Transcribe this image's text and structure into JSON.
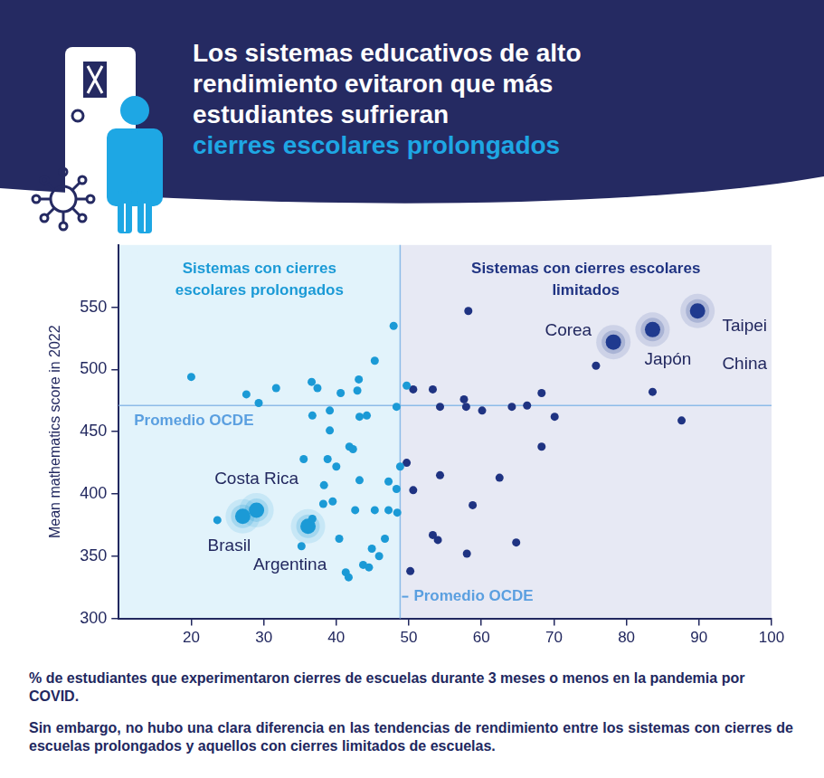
{
  "chart_data": {
    "type": "scatter",
    "title": "Los sistemas educativos de alto rendimiento evitaron que más estudiantes sufrieran",
    "subtitle": "cierres escolares prolongados",
    "x_label": "% de estudiantes que experimentaron cierres de escuelas durante 3 meses o menos en la pandemia por COVID.",
    "y_label": "Mean mathematics score in 2022",
    "note": "Sin embargo, no hubo una clara diferencia en las tendencias de rendimiento entre los sistemas con cierres de escuelas prolongados y aquellos con cierres limitados de escuelas.",
    "xlim": [
      10,
      100
    ],
    "xticks": [
      20,
      30,
      40,
      50,
      60,
      70,
      80,
      90,
      100
    ],
    "ylim": [
      300,
      600
    ],
    "yticks": [
      300,
      350,
      400,
      450,
      500,
      550
    ],
    "grid": false,
    "reference_lines": [
      {
        "axis": "x",
        "value": 48.8,
        "label": "Promedio OCDE"
      },
      {
        "axis": "y",
        "value": 471,
        "label": "Promedio OCDE"
      }
    ],
    "regions": [
      {
        "label": "Sistemas con cierres escolares prolongados",
        "side": "left",
        "color": "#e2f3fb"
      },
      {
        "label": "Sistemas con cierres escolares limitados",
        "side": "right",
        "color": "#e7e9f4"
      }
    ],
    "series": [
      {
        "color": "#1b9ad6",
        "marker": "circle",
        "x": [
          20,
          27.6,
          29.3,
          31.7,
          36.6,
          37.4,
          36.7,
          39.1,
          40.6,
          43.1,
          42.9,
          45.3,
          47.9,
          43.2,
          44.2,
          39.1,
          41.8,
          42.3,
          35.5,
          38.8,
          40,
          38.3,
          43.2,
          48.8,
          47.2,
          48.3,
          39.5,
          38.2,
          42.6,
          45.3,
          47.2,
          48.4,
          23.6,
          36.7,
          40.4,
          35.2,
          46.7,
          44.9,
          45.9,
          43.7,
          44.5,
          41.3,
          41.7,
          48.3,
          49.7
        ],
        "y": [
          494,
          480,
          473,
          485,
          490,
          485,
          463,
          467,
          481,
          492,
          483,
          507,
          535,
          462,
          463,
          451,
          438,
          436,
          428,
          428,
          422,
          407,
          411,
          422,
          410,
          404,
          394,
          392,
          387,
          387,
          387,
          385,
          379,
          380,
          364,
          358,
          364,
          356,
          350,
          343,
          341,
          337,
          333,
          470,
          487
        ]
      },
      {
        "color": "#1f3382",
        "marker": "circle",
        "x": [
          58.2,
          50.6,
          53.3,
          57.6,
          54.3,
          57.9,
          60.1,
          64.2,
          66.3,
          68.3,
          70.1,
          75.8,
          83.6,
          87.6,
          68.3,
          49.7,
          54.3,
          62.5,
          50.6,
          58.8,
          53.3,
          54,
          58,
          64.8,
          50.2
        ],
        "y": [
          547,
          484,
          484,
          476,
          470,
          470,
          467,
          470,
          471,
          481,
          462,
          503,
          482,
          459,
          438,
          425,
          415,
          413,
          403,
          391,
          367,
          363,
          352,
          361,
          338
        ]
      }
    ],
    "highlighted": [
      {
        "label": [
          "Costa Rica"
        ],
        "x": 29,
        "y": 387,
        "color": "#1b9ad6"
      },
      {
        "label": [
          "Brasil"
        ],
        "x": 27.1,
        "y": 382,
        "color": "#1b9ad6"
      },
      {
        "label": [
          "Argentina"
        ],
        "x": 36.1,
        "y": 374,
        "color": "#1b9ad6"
      },
      {
        "label": [
          "Corea"
        ],
        "x": 78.2,
        "y": 522,
        "color": "#1f3a8f"
      },
      {
        "label": [
          "Japón"
        ],
        "x": 83.6,
        "y": 532,
        "color": "#1f3a8f"
      },
      {
        "label": [
          "Taipei",
          "China"
        ],
        "x": 89.8,
        "y": 547,
        "color": "#1f3a8f"
      }
    ]
  }
}
